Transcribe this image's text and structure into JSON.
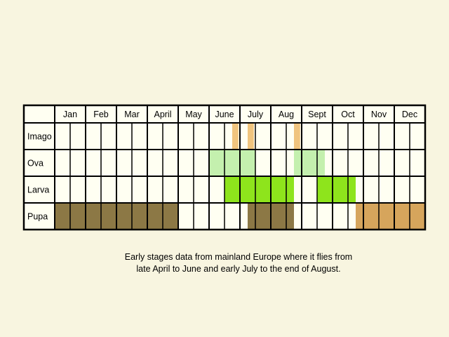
{
  "chart_data": {
    "type": "table",
    "months": [
      "Jan",
      "Feb",
      "Mar",
      "April",
      "May",
      "June",
      "July",
      "Aug",
      "Sept",
      "Oct",
      "Nov",
      "Dec"
    ],
    "rows": [
      {
        "label": "Imago",
        "color": "#f0c47e",
        "periods": [
          [
            5.75,
            5.95
          ],
          [
            6.25,
            6.45
          ],
          [
            7.75,
            7.95
          ]
        ]
      },
      {
        "label": "Ova",
        "color": "#c4f0ae",
        "periods": [
          [
            5.0,
            6.5
          ],
          [
            7.75,
            8.75
          ]
        ]
      },
      {
        "label": "Larva",
        "color": "#8ee41c",
        "periods": [
          [
            5.5,
            7.75
          ],
          [
            8.5,
            9.75
          ]
        ]
      },
      {
        "label": "Pupa",
        "segments": [
          {
            "start": 0.0,
            "end": 4.0,
            "color": "#8c7845"
          },
          {
            "start": 6.25,
            "end": 7.75,
            "color": "#8c7845"
          },
          {
            "start": 9.75,
            "end": 12.0,
            "color": "#d6a55c"
          }
        ]
      }
    ],
    "weeks_per_month": 2
  },
  "caption": {
    "line1": "Early stages data from mainland Europe where it flies from",
    "line2": "late April to June and early July to the end of August."
  },
  "colors": {
    "cell_background": "#fffff2",
    "grid_line": "#000000",
    "page_background": "#f8f5e0"
  }
}
